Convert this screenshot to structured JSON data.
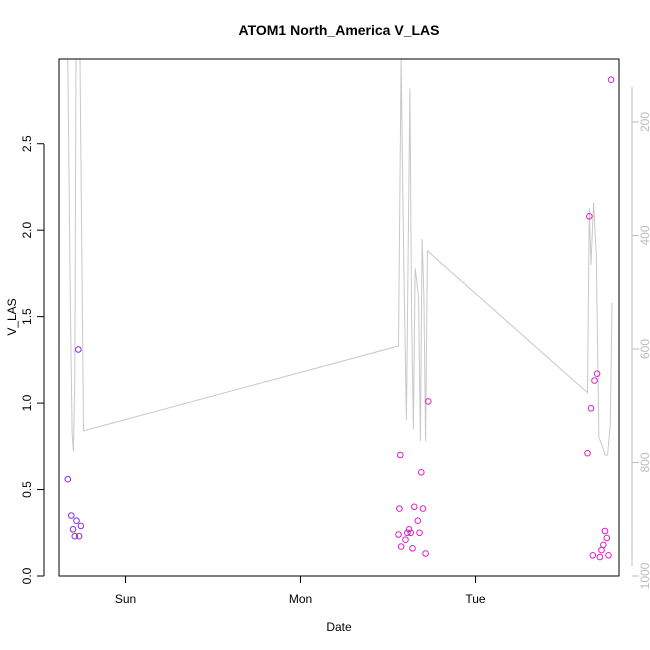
{
  "chart_data": {
    "type": "scatter",
    "title": "ATOM1 North_America V_LAS",
    "xlabel": "Date",
    "ylabel": "V_LAS",
    "x_unit": "day",
    "xlim": [
      -0.38,
      2.82
    ],
    "ylim": [
      0,
      2.99
    ],
    "x_ticks": [
      {
        "value": 0,
        "label": "Sun"
      },
      {
        "value": 1,
        "label": "Mon"
      },
      {
        "value": 2,
        "label": "Tue"
      }
    ],
    "y_ticks": [
      0.0,
      0.5,
      1.0,
      1.5,
      2.0,
      2.5
    ],
    "y_tick_labels": [
      "0.0",
      "0.5",
      "1.0",
      "1.5",
      "2.0",
      "2.5"
    ],
    "y2_ticks": [
      200,
      400,
      600,
      800,
      1000
    ],
    "y2_range": [
      89,
      1000
    ],
    "y2_inverted": true,
    "grid": false,
    "colors": {
      "axis": "#000000",
      "line": "#c8c8c8",
      "right_axis": "#bdbdbd"
    },
    "points": [
      {
        "x": -0.33,
        "y": 0.56,
        "color": "#8a2be2"
      },
      {
        "x": -0.31,
        "y": 0.35,
        "color": "#8a2be2"
      },
      {
        "x": -0.3,
        "y": 0.27,
        "color": "#8a2be2"
      },
      {
        "x": -0.29,
        "y": 0.23,
        "color": "#8a2be2"
      },
      {
        "x": -0.28,
        "y": 0.32,
        "color": "#8a2be2"
      },
      {
        "x": -0.265,
        "y": 0.23,
        "color": "#8a2be2"
      },
      {
        "x": -0.255,
        "y": 0.29,
        "color": "#8a2be2"
      },
      {
        "x": -0.27,
        "y": 1.31,
        "color": "#8a2be2"
      },
      {
        "x": 1.56,
        "y": 0.24,
        "color": "#e020c8"
      },
      {
        "x": 1.565,
        "y": 0.39,
        "color": "#e020c8"
      },
      {
        "x": 1.57,
        "y": 0.7,
        "color": "#e020c8"
      },
      {
        "x": 1.575,
        "y": 0.17,
        "color": "#e020c8"
      },
      {
        "x": 1.6,
        "y": 0.21,
        "color": "#e020c8"
      },
      {
        "x": 1.62,
        "y": 0.27,
        "color": "#e020c8"
      },
      {
        "x": 1.61,
        "y": 0.25,
        "color": "#e020c8"
      },
      {
        "x": 1.63,
        "y": 0.25,
        "color": "#e020c8"
      },
      {
        "x": 1.64,
        "y": 0.16,
        "color": "#e020c8"
      },
      {
        "x": 1.65,
        "y": 0.4,
        "color": "#e020c8"
      },
      {
        "x": 1.67,
        "y": 0.32,
        "color": "#e020c8"
      },
      {
        "x": 1.68,
        "y": 0.25,
        "color": "#e020c8"
      },
      {
        "x": 1.69,
        "y": 0.6,
        "color": "#e020c8"
      },
      {
        "x": 1.7,
        "y": 0.39,
        "color": "#e020c8"
      },
      {
        "x": 1.715,
        "y": 0.13,
        "color": "#e020c8"
      },
      {
        "x": 1.73,
        "y": 1.01,
        "color": "#e020c8"
      },
      {
        "x": 2.64,
        "y": 0.71,
        "color": "#e020c8"
      },
      {
        "x": 2.65,
        "y": 2.08,
        "color": "#e020c8"
      },
      {
        "x": 2.66,
        "y": 0.97,
        "color": "#e020c8"
      },
      {
        "x": 2.67,
        "y": 0.12,
        "color": "#e020c8"
      },
      {
        "x": 2.68,
        "y": 1.13,
        "color": "#e020c8"
      },
      {
        "x": 2.695,
        "y": 1.17,
        "color": "#e020c8"
      },
      {
        "x": 2.71,
        "y": 0.11,
        "color": "#e020c8"
      },
      {
        "x": 2.72,
        "y": 0.15,
        "color": "#e020c8"
      },
      {
        "x": 2.73,
        "y": 0.18,
        "color": "#e020c8"
      },
      {
        "x": 2.74,
        "y": 0.26,
        "color": "#e020c8"
      },
      {
        "x": 2.75,
        "y": 0.22,
        "color": "#e020c8"
      },
      {
        "x": 2.76,
        "y": 0.12,
        "color": "#e020c8"
      },
      {
        "x": 2.775,
        "y": 2.87,
        "color": "#e020c8"
      }
    ],
    "line": [
      {
        "x": -0.33,
        "y": 2.99
      },
      {
        "x": -0.315,
        "y": 1.55
      },
      {
        "x": -0.305,
        "y": 0.83
      },
      {
        "x": -0.298,
        "y": 0.72
      },
      {
        "x": -0.29,
        "y": 1.15
      },
      {
        "x": -0.283,
        "y": 2.99
      },
      {
        "x": -0.26,
        "y": 2.99
      },
      {
        "x": -0.24,
        "y": 0.84
      },
      {
        "x": 1.56,
        "y": 1.33
      },
      {
        "x": 1.575,
        "y": 2.99
      },
      {
        "x": 1.59,
        "y": 1.8
      },
      {
        "x": 1.605,
        "y": 0.9
      },
      {
        "x": 1.625,
        "y": 2.82
      },
      {
        "x": 1.635,
        "y": 1.5
      },
      {
        "x": 1.645,
        "y": 0.85
      },
      {
        "x": 1.655,
        "y": 1.78
      },
      {
        "x": 1.665,
        "y": 1.7
      },
      {
        "x": 1.675,
        "y": 1.6
      },
      {
        "x": 1.685,
        "y": 0.78
      },
      {
        "x": 1.695,
        "y": 1.95
      },
      {
        "x": 1.705,
        "y": 1.62
      },
      {
        "x": 1.715,
        "y": 0.78
      },
      {
        "x": 1.725,
        "y": 1.88
      },
      {
        "x": 2.64,
        "y": 1.06
      },
      {
        "x": 2.65,
        "y": 2.13
      },
      {
        "x": 2.66,
        "y": 1.8
      },
      {
        "x": 2.675,
        "y": 2.16
      },
      {
        "x": 2.69,
        "y": 1.85
      },
      {
        "x": 2.705,
        "y": 0.8
      },
      {
        "x": 2.725,
        "y": 0.75
      },
      {
        "x": 2.74,
        "y": 0.7
      },
      {
        "x": 2.755,
        "y": 0.7
      },
      {
        "x": 2.77,
        "y": 0.88
      },
      {
        "x": 2.78,
        "y": 1.58
      }
    ]
  }
}
